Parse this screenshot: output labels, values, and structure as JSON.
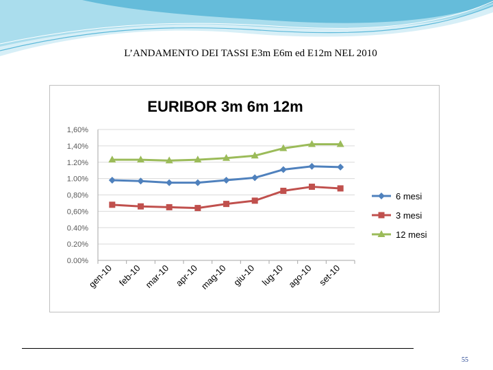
{
  "slide": {
    "title": "L’ANDAMENTO DEI TASSI  E3m E6m ed E12m  NEL 2010",
    "page_number": "55"
  },
  "colors": {
    "wave_light": "#bfe6f2",
    "wave_mid": "#7fcbe3",
    "wave_dark": "#3aa3c8",
    "grid": "#d9d9d9",
    "axis_text": "#595959"
  },
  "chart_data": {
    "type": "line",
    "title": "EURIBOR 3m 6m 12m",
    "xlabel": "",
    "ylabel": "",
    "categories": [
      "gen-10",
      "feb-10",
      "mar-10",
      "apr-10",
      "mag-10",
      "giu-10",
      "lug-10",
      "ago-10",
      "set-10"
    ],
    "ylim": [
      0,
      1.6
    ],
    "yticks": [
      "1,60%",
      "1,40%",
      "1.20%",
      "1.00%",
      "0,80%",
      "0,60%",
      "0.40%",
      "0.20%",
      "0.00%"
    ],
    "grid": true,
    "legend_position": "right",
    "series": [
      {
        "name": "6 mesi",
        "color": "#4f81bd",
        "marker": "diamond",
        "values": [
          0.98,
          0.97,
          0.95,
          0.95,
          0.98,
          1.01,
          1.11,
          1.15,
          1.14
        ]
      },
      {
        "name": "3 mesi",
        "color": "#c0504d",
        "marker": "square",
        "values": [
          0.68,
          0.66,
          0.65,
          0.64,
          0.69,
          0.73,
          0.85,
          0.9,
          0.88
        ]
      },
      {
        "name": "12 mesi",
        "color": "#9bbb59",
        "marker": "triangle",
        "values": [
          1.23,
          1.23,
          1.22,
          1.23,
          1.25,
          1.28,
          1.37,
          1.42,
          1.42
        ]
      }
    ]
  }
}
